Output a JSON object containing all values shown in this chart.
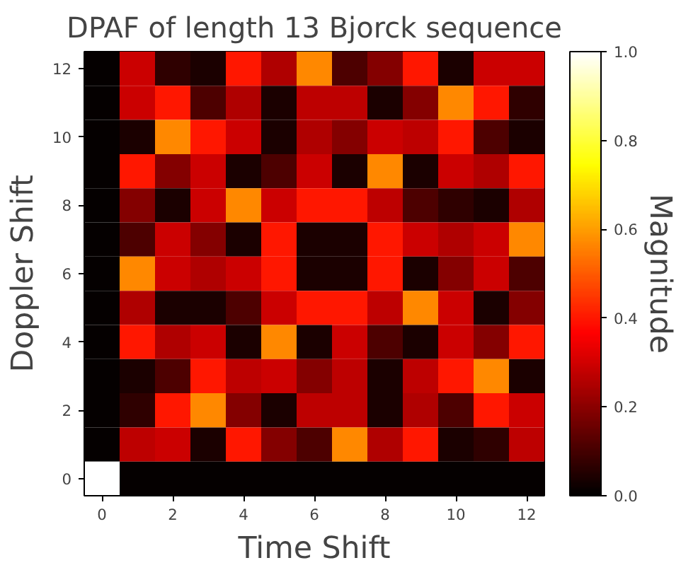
{
  "chart_data": {
    "type": "heatmap",
    "title": "DPAF of length 13 Bjorck sequence",
    "xlabel": "Time Shift",
    "ylabel": "Doppler Shift",
    "clabel": "Magnitude",
    "categories": [
      "0",
      null,
      "2",
      null,
      "4",
      null,
      "6",
      null,
      "8",
      null,
      "10",
      null,
      "12"
    ],
    "y_categories": [
      "12",
      null,
      "10",
      null,
      "8",
      null,
      "6",
      null,
      "4",
      null,
      "2",
      null,
      "0"
    ],
    "cells": [
      [
        0.01,
        0.29,
        0.07,
        0.04,
        0.4,
        0.25,
        0.57,
        0.11,
        0.19,
        0.4,
        0.04,
        0.29,
        0.29
      ],
      [
        0.01,
        0.29,
        0.4,
        0.11,
        0.25,
        0.04,
        0.27,
        0.27,
        0.04,
        0.19,
        0.57,
        0.4,
        0.07
      ],
      [
        0.01,
        0.04,
        0.57,
        0.4,
        0.29,
        0.04,
        0.25,
        0.19,
        0.29,
        0.27,
        0.4,
        0.11,
        0.04
      ],
      [
        0.01,
        0.4,
        0.19,
        0.29,
        0.04,
        0.11,
        0.29,
        0.04,
        0.57,
        0.04,
        0.29,
        0.25,
        0.4
      ],
      [
        0.01,
        0.19,
        0.04,
        0.29,
        0.57,
        0.29,
        0.4,
        0.4,
        0.27,
        0.11,
        0.07,
        0.04,
        0.25
      ],
      [
        0.01,
        0.11,
        0.29,
        0.19,
        0.04,
        0.4,
        0.04,
        0.04,
        0.4,
        0.29,
        0.25,
        0.29,
        0.57
      ],
      [
        0.01,
        0.57,
        0.29,
        0.25,
        0.29,
        0.4,
        0.04,
        0.04,
        0.4,
        0.04,
        0.19,
        0.29,
        0.11
      ],
      [
        0.01,
        0.25,
        0.04,
        0.04,
        0.11,
        0.29,
        0.4,
        0.4,
        0.27,
        0.57,
        0.29,
        0.04,
        0.19
      ],
      [
        0.01,
        0.4,
        0.25,
        0.29,
        0.04,
        0.57,
        0.04,
        0.29,
        0.11,
        0.04,
        0.29,
        0.19,
        0.4
      ],
      [
        0.01,
        0.04,
        0.11,
        0.4,
        0.27,
        0.29,
        0.19,
        0.27,
        0.04,
        0.27,
        0.4,
        0.57,
        0.04
      ],
      [
        0.01,
        0.07,
        0.4,
        0.57,
        0.19,
        0.04,
        0.27,
        0.27,
        0.04,
        0.25,
        0.11,
        0.4,
        0.29
      ],
      [
        0.01,
        0.27,
        0.29,
        0.04,
        0.4,
        0.19,
        0.11,
        0.57,
        0.25,
        0.4,
        0.04,
        0.07,
        0.27
      ],
      [
        1.0,
        0.01,
        0.01,
        0.01,
        0.01,
        0.01,
        0.01,
        0.01,
        0.01,
        0.01,
        0.01,
        0.01,
        0.01
      ]
    ],
    "clim": [
      0,
      1
    ],
    "cticks": [
      {
        "value": 0,
        "label": "0.0"
      },
      0.2,
      0.4,
      0.6,
      0.8,
      {
        "value": 1,
        "label": "1.0"
      }
    ]
  }
}
